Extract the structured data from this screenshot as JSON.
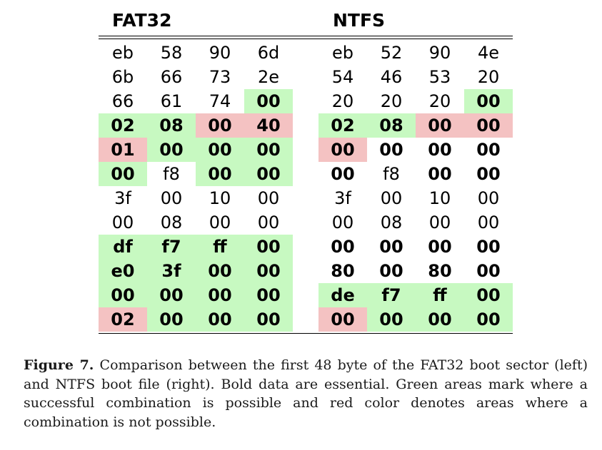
{
  "headers": {
    "left": "FAT32",
    "right": "NTFS"
  },
  "fat32": [
    [
      {
        "v": "eb"
      },
      {
        "v": "58"
      },
      {
        "v": "90"
      },
      {
        "v": "6d"
      }
    ],
    [
      {
        "v": "6b"
      },
      {
        "v": "66"
      },
      {
        "v": "73"
      },
      {
        "v": "2e"
      }
    ],
    [
      {
        "v": "66"
      },
      {
        "v": "61"
      },
      {
        "v": "74"
      },
      {
        "v": "00",
        "b": true,
        "c": "green"
      }
    ],
    [
      {
        "v": "02",
        "b": true,
        "c": "green"
      },
      {
        "v": "08",
        "b": true,
        "c": "green"
      },
      {
        "v": "00",
        "b": true,
        "c": "red"
      },
      {
        "v": "40",
        "b": true,
        "c": "red"
      }
    ],
    [
      {
        "v": "01",
        "b": true,
        "c": "red"
      },
      {
        "v": "00",
        "b": true,
        "c": "green"
      },
      {
        "v": "00",
        "b": true,
        "c": "green"
      },
      {
        "v": "00",
        "b": true,
        "c": "green"
      }
    ],
    [
      {
        "v": "00",
        "b": true,
        "c": "green"
      },
      {
        "v": "f8"
      },
      {
        "v": "00",
        "b": true,
        "c": "green"
      },
      {
        "v": "00",
        "b": true,
        "c": "green"
      }
    ],
    [
      {
        "v": "3f"
      },
      {
        "v": "00"
      },
      {
        "v": "10"
      },
      {
        "v": "00"
      }
    ],
    [
      {
        "v": "00"
      },
      {
        "v": "08"
      },
      {
        "v": "00"
      },
      {
        "v": "00"
      }
    ],
    [
      {
        "v": "df",
        "b": true,
        "c": "green"
      },
      {
        "v": "f7",
        "b": true,
        "c": "green"
      },
      {
        "v": "ff",
        "b": true,
        "c": "green"
      },
      {
        "v": "00",
        "b": true,
        "c": "green"
      }
    ],
    [
      {
        "v": "e0",
        "b": true,
        "c": "green"
      },
      {
        "v": "3f",
        "b": true,
        "c": "green"
      },
      {
        "v": "00",
        "b": true,
        "c": "green"
      },
      {
        "v": "00",
        "b": true,
        "c": "green"
      }
    ],
    [
      {
        "v": "00",
        "b": true,
        "c": "green"
      },
      {
        "v": "00",
        "b": true,
        "c": "green"
      },
      {
        "v": "00",
        "b": true,
        "c": "green"
      },
      {
        "v": "00",
        "b": true,
        "c": "green"
      }
    ],
    [
      {
        "v": "02",
        "b": true,
        "c": "red"
      },
      {
        "v": "00",
        "b": true,
        "c": "green"
      },
      {
        "v": "00",
        "b": true,
        "c": "green"
      },
      {
        "v": "00",
        "b": true,
        "c": "green"
      }
    ]
  ],
  "ntfs": [
    [
      {
        "v": "eb"
      },
      {
        "v": "52"
      },
      {
        "v": "90"
      },
      {
        "v": "4e"
      }
    ],
    [
      {
        "v": "54"
      },
      {
        "v": "46"
      },
      {
        "v": "53"
      },
      {
        "v": "20"
      }
    ],
    [
      {
        "v": "20"
      },
      {
        "v": "20"
      },
      {
        "v": "20"
      },
      {
        "v": "00",
        "b": true,
        "c": "green"
      }
    ],
    [
      {
        "v": "02",
        "b": true,
        "c": "green"
      },
      {
        "v": "08",
        "b": true,
        "c": "green"
      },
      {
        "v": "00",
        "b": true,
        "c": "red"
      },
      {
        "v": "00",
        "b": true,
        "c": "red"
      }
    ],
    [
      {
        "v": "00",
        "b": true,
        "c": "red"
      },
      {
        "v": "00",
        "b": true
      },
      {
        "v": "00",
        "b": true
      },
      {
        "v": "00",
        "b": true
      }
    ],
    [
      {
        "v": "00",
        "b": true
      },
      {
        "v": "f8"
      },
      {
        "v": "00",
        "b": true
      },
      {
        "v": "00",
        "b": true
      }
    ],
    [
      {
        "v": "3f"
      },
      {
        "v": "00"
      },
      {
        "v": "10"
      },
      {
        "v": "00"
      }
    ],
    [
      {
        "v": "00"
      },
      {
        "v": "08"
      },
      {
        "v": "00"
      },
      {
        "v": "00"
      }
    ],
    [
      {
        "v": "00",
        "b": true
      },
      {
        "v": "00",
        "b": true
      },
      {
        "v": "00",
        "b": true
      },
      {
        "v": "00",
        "b": true
      }
    ],
    [
      {
        "v": "80",
        "b": true
      },
      {
        "v": "00",
        "b": true
      },
      {
        "v": "80",
        "b": true
      },
      {
        "v": "00",
        "b": true
      }
    ],
    [
      {
        "v": "de",
        "b": true,
        "c": "green"
      },
      {
        "v": "f7",
        "b": true,
        "c": "green"
      },
      {
        "v": "ff",
        "b": true,
        "c": "green"
      },
      {
        "v": "00",
        "b": true,
        "c": "green"
      }
    ],
    [
      {
        "v": "00",
        "b": true,
        "c": "red"
      },
      {
        "v": "00",
        "b": true,
        "c": "green"
      },
      {
        "v": "00",
        "b": true,
        "c": "green"
      },
      {
        "v": "00",
        "b": true,
        "c": "green"
      }
    ]
  ],
  "colors": {
    "green": "#c7f9c1",
    "red": "#f4c2c2"
  },
  "caption": {
    "label": "Figure 7.",
    "text": "Comparison between the first 48 byte of the FAT32 boot sector (left) and NTFS boot file (right). Bold data are essential. Green areas mark where a successful combination is possible and red color denotes areas where a combination is not possible."
  }
}
